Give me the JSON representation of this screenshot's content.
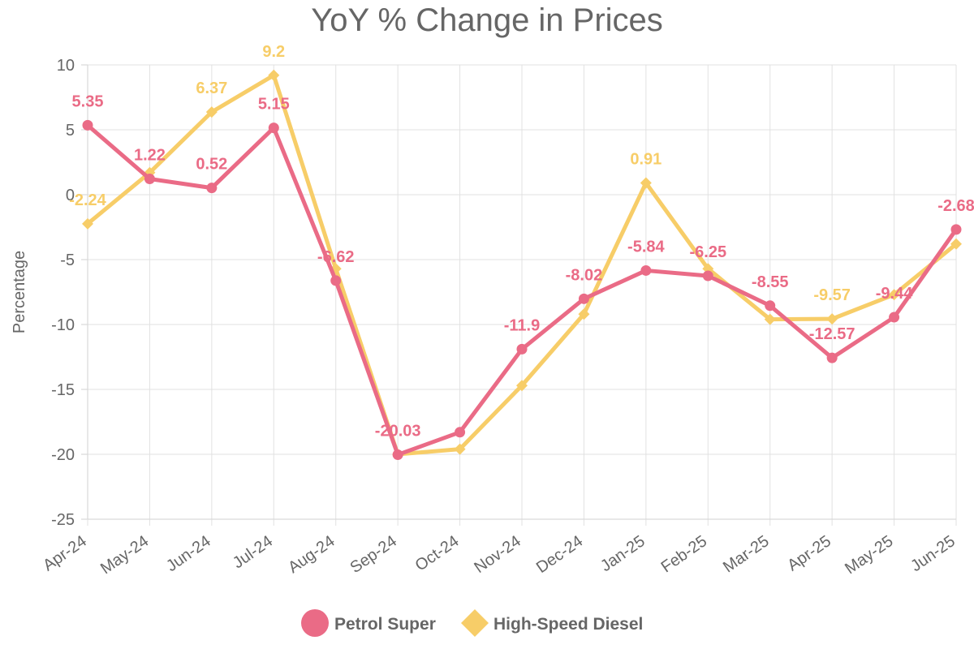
{
  "chart_data": {
    "type": "line",
    "title": "YoY % Change in Prices",
    "ylabel": "Percentage",
    "xlabel": "",
    "ylim": [
      -25,
      10
    ],
    "yticks": [
      -25,
      -20,
      -15,
      -10,
      -5,
      0,
      5,
      10
    ],
    "grid": true,
    "legend_position": "bottom",
    "categories": [
      "Apr-24",
      "May-24",
      "Jun-24",
      "Jul-24",
      "Aug-24",
      "Sep-24",
      "Oct-24",
      "Nov-24",
      "Dec-24",
      "Jan-25",
      "Feb-25",
      "Mar-25",
      "Apr-25",
      "May-25",
      "Jun-25"
    ],
    "series": [
      {
        "name": "Petrol Super",
        "color": "#ea6b86",
        "marker": "circle",
        "values": [
          5.35,
          1.22,
          0.52,
          5.15,
          -6.62,
          -20.03,
          -18.3,
          -11.9,
          -8.02,
          -5.84,
          -6.25,
          -8.55,
          -12.57,
          -9.44,
          -2.68
        ],
        "labels": [
          "5.35",
          "1.22",
          "0.52",
          "5.15",
          "-6.62",
          "-20.03",
          "",
          "-11.9",
          "-8.02",
          "-5.84",
          "-6.25",
          "-8.55",
          "-12.57",
          "-9.44",
          "-2.68"
        ]
      },
      {
        "name": "High-Speed Diesel",
        "color": "#f7cd68",
        "marker": "diamond",
        "values": [
          -2.24,
          1.7,
          6.37,
          9.2,
          -5.7,
          -20.0,
          -19.6,
          -14.7,
          -9.2,
          0.91,
          -5.7,
          -9.6,
          -9.57,
          -7.7,
          -3.8
        ],
        "labels": [
          "-2.24",
          "",
          "6.37",
          "9.2",
          "",
          "",
          "",
          "",
          "",
          "0.91",
          "",
          "",
          "-9.57",
          "",
          ""
        ]
      }
    ]
  }
}
